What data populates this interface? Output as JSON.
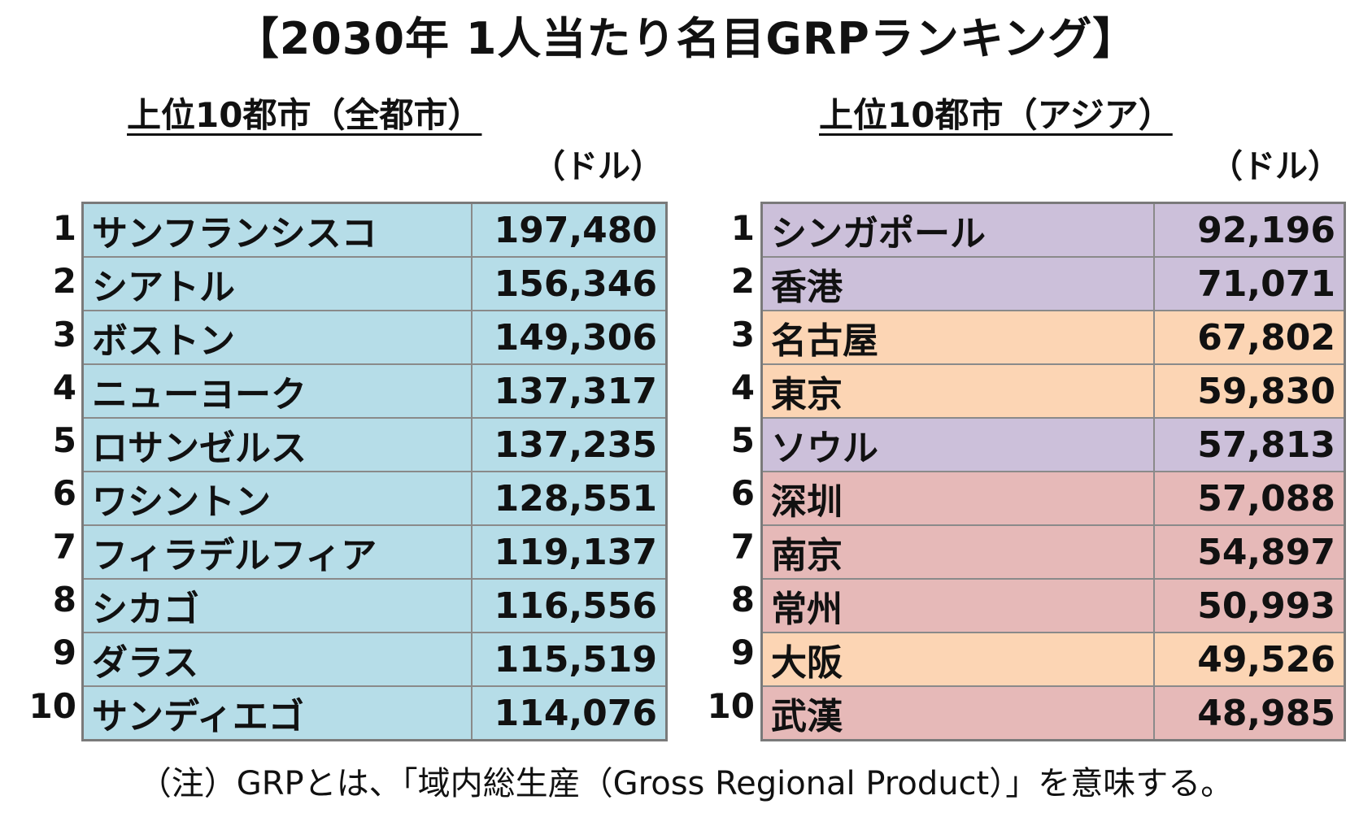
{
  "title": "【2030年 1人当たり名目GRPランキング】",
  "colors": {
    "us": "#b6dde8",
    "asia_other": "#ccc0da",
    "japan": "#fcd5b4",
    "china": "#e6b9b8",
    "border": "#8a8a8a"
  },
  "left": {
    "heading": "上位10都市（全都市）",
    "unit": "（ドル）",
    "rows": [
      {
        "rank": "1",
        "city": "サンフランシスコ",
        "value": "197,480",
        "group": "us"
      },
      {
        "rank": "2",
        "city": "シアトル",
        "value": "156,346",
        "group": "us"
      },
      {
        "rank": "3",
        "city": "ボストン",
        "value": "149,306",
        "group": "us"
      },
      {
        "rank": "4",
        "city": "ニューヨーク",
        "value": "137,317",
        "group": "us"
      },
      {
        "rank": "5",
        "city": "ロサンゼルス",
        "value": "137,235",
        "group": "us"
      },
      {
        "rank": "6",
        "city": "ワシントン",
        "value": "128,551",
        "group": "us"
      },
      {
        "rank": "7",
        "city": "フィラデルフィア",
        "value": "119,137",
        "group": "us"
      },
      {
        "rank": "8",
        "city": "シカゴ",
        "value": "116,556",
        "group": "us"
      },
      {
        "rank": "9",
        "city": "ダラス",
        "value": "115,519",
        "group": "us"
      },
      {
        "rank": "10",
        "city": "サンディエゴ",
        "value": "114,076",
        "group": "us"
      }
    ]
  },
  "right": {
    "heading": "上位10都市（アジア）",
    "unit": "（ドル）",
    "rows": [
      {
        "rank": "1",
        "city": "シンガポール",
        "value": "92,196",
        "group": "asia_other"
      },
      {
        "rank": "2",
        "city": "香港",
        "value": "71,071",
        "group": "asia_other"
      },
      {
        "rank": "3",
        "city": "名古屋",
        "value": "67,802",
        "group": "japan"
      },
      {
        "rank": "4",
        "city": "東京",
        "value": "59,830",
        "group": "japan"
      },
      {
        "rank": "5",
        "city": "ソウル",
        "value": "57,813",
        "group": "asia_other"
      },
      {
        "rank": "6",
        "city": "深圳",
        "value": "57,088",
        "group": "china"
      },
      {
        "rank": "7",
        "city": "南京",
        "value": "54,897",
        "group": "china"
      },
      {
        "rank": "8",
        "city": "常州",
        "value": "50,993",
        "group": "china"
      },
      {
        "rank": "9",
        "city": "大阪",
        "value": "49,526",
        "group": "japan"
      },
      {
        "rank": "10",
        "city": "武漢",
        "value": "48,985",
        "group": "china"
      }
    ]
  },
  "note": "（注）GRPとは、「域内総生産（Gross Regional Product）」を意味する。"
}
